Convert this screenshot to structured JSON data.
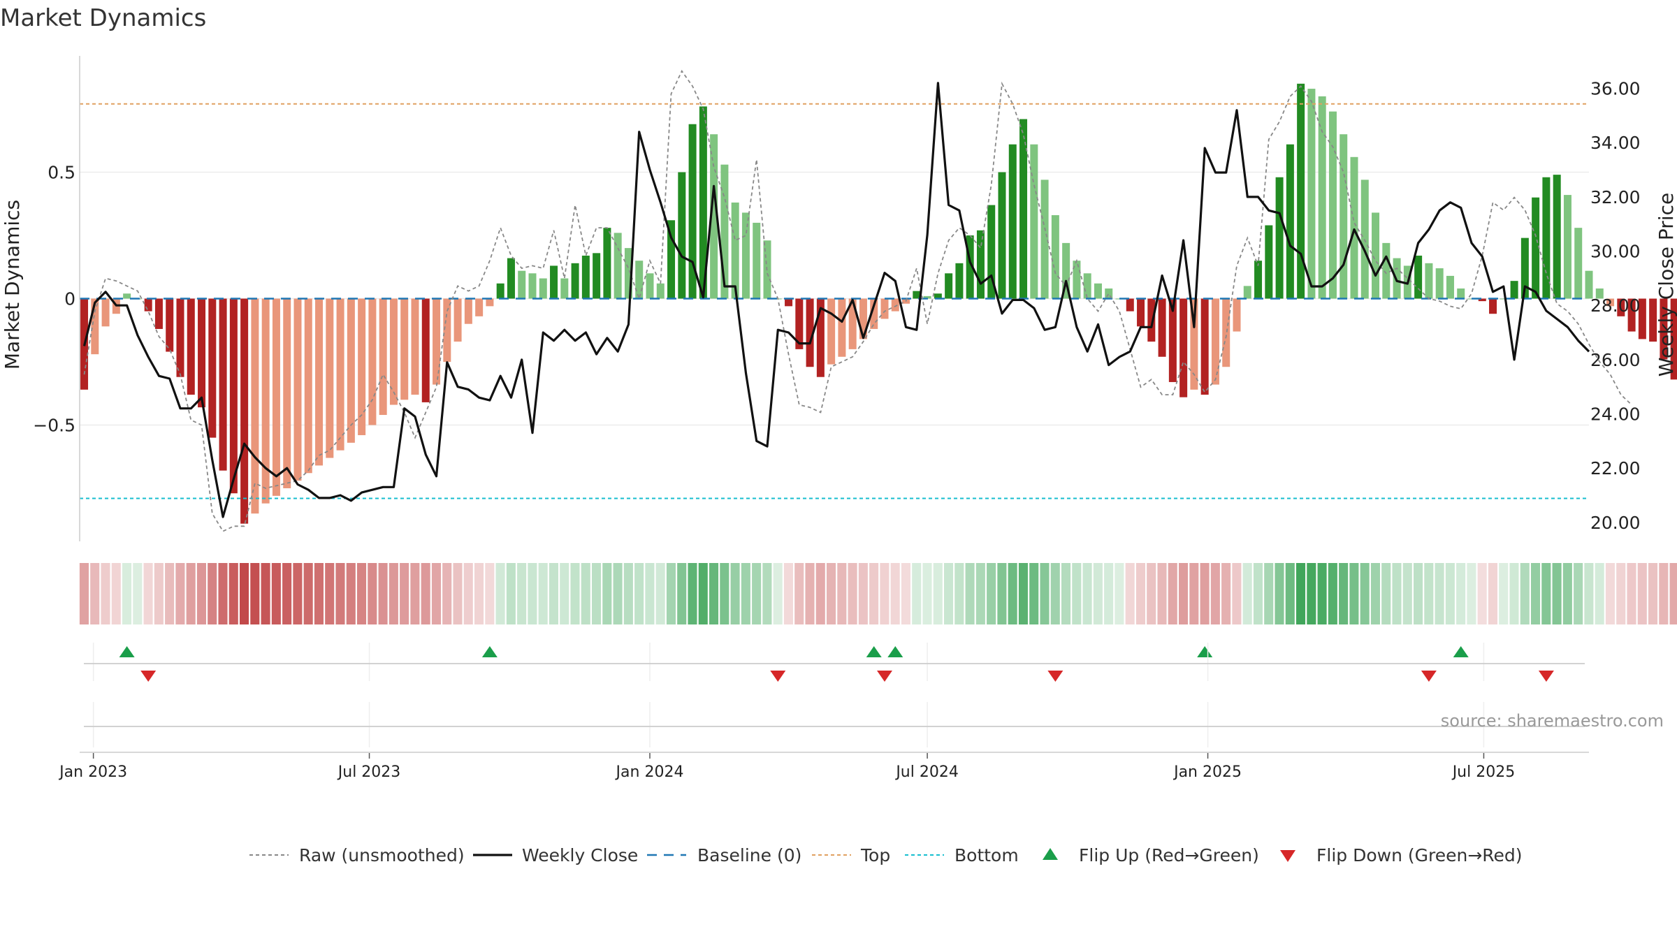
{
  "title": "Market Dynamics",
  "source": "source: sharemaestro.com",
  "colors": {
    "strong_red": "#b22222",
    "weak_red": "#e9967a",
    "strong_green": "#228b22",
    "weak_green": "#7fc47f",
    "close_line": "#111111",
    "raw_line": "#888888",
    "baseline": "#1f77b4",
    "top": "#e0a060",
    "bottom": "#17becf",
    "flip_up": "#1a9e4a",
    "flip_down": "#d62728"
  },
  "chart_data": {
    "type": "bar",
    "left_axis": {
      "label": "Market Dynamics",
      "ticks": [
        -0.5,
        0,
        0.5
      ],
      "tick_labels": [
        "−0.5",
        "0",
        "0.5"
      ],
      "range": [
        -0.96,
        0.96
      ]
    },
    "right_axis": {
      "label": "Weekly Close Price",
      "ticks": [
        20,
        22,
        24,
        26,
        28,
        30,
        32,
        34,
        36
      ],
      "tick_labels": [
        "20.00",
        "22.00",
        "24.00",
        "26.00",
        "28.00",
        "30.00",
        "32.00",
        "34.00",
        "36.00"
      ],
      "range": [
        19.3,
        37.2
      ]
    },
    "x_axis": {
      "range": [
        "2022-12-23",
        "2025-09-08"
      ],
      "ticks": [
        "2023-01-01",
        "2023-07-01",
        "2024-01-01",
        "2024-07-01",
        "2025-01-01",
        "2025-07-01"
      ],
      "tick_labels": [
        "Jan 2023",
        "Jul 2023",
        "Jan 2024",
        "Jul 2024",
        "Jan 2025",
        "Jul 2025"
      ]
    },
    "start_week": "2022-12-26",
    "top": 0.77,
    "bottom": -0.79,
    "baseline": 0,
    "dynamics": [
      -0.36,
      -0.22,
      -0.11,
      -0.06,
      0.02,
      0.0,
      -0.05,
      -0.12,
      -0.21,
      -0.31,
      -0.38,
      -0.43,
      -0.55,
      -0.68,
      -0.77,
      -0.89,
      -0.85,
      -0.81,
      -0.78,
      -0.75,
      -0.72,
      -0.69,
      -0.66,
      -0.63,
      -0.6,
      -0.57,
      -0.54,
      -0.5,
      -0.46,
      -0.42,
      -0.4,
      -0.38,
      -0.41,
      -0.34,
      -0.25,
      -0.17,
      -0.1,
      -0.07,
      -0.03,
      0.06,
      0.16,
      0.11,
      0.1,
      0.08,
      0.13,
      0.08,
      0.14,
      0.17,
      0.18,
      0.28,
      0.26,
      0.2,
      0.15,
      0.1,
      0.06,
      0.31,
      0.5,
      0.69,
      0.76,
      0.65,
      0.53,
      0.38,
      0.34,
      0.3,
      0.23,
      0.0,
      -0.03,
      -0.2,
      -0.27,
      -0.31,
      -0.26,
      -0.23,
      -0.2,
      -0.16,
      -0.12,
      -0.08,
      -0.05,
      -0.02,
      0.03,
      0.01,
      0.02,
      0.1,
      0.14,
      0.25,
      0.27,
      0.37,
      0.5,
      0.61,
      0.71,
      0.61,
      0.47,
      0.33,
      0.22,
      0.15,
      0.1,
      0.06,
      0.04,
      0.0,
      -0.05,
      -0.11,
      -0.17,
      -0.23,
      -0.33,
      -0.39,
      -0.36,
      -0.38,
      -0.34,
      -0.27,
      -0.13,
      0.05,
      0.15,
      0.29,
      0.48,
      0.61,
      0.85,
      0.83,
      0.8,
      0.74,
      0.65,
      0.56,
      0.47,
      0.34,
      0.22,
      0.16,
      0.13,
      0.17,
      0.14,
      0.12,
      0.09,
      0.04,
      0.0,
      -0.01,
      -0.06,
      0.0,
      0.07,
      0.24,
      0.4,
      0.48,
      0.49,
      0.41,
      0.28,
      0.11,
      0.04,
      -0.03,
      -0.07,
      -0.13,
      -0.16,
      -0.17,
      -0.24,
      -0.32
    ],
    "raw": [
      -0.3,
      -0.05,
      0.08,
      0.07,
      0.05,
      0.03,
      -0.05,
      -0.15,
      -0.2,
      -0.3,
      -0.48,
      -0.5,
      -0.85,
      -0.92,
      -0.9,
      -0.9,
      -0.73,
      -0.75,
      -0.74,
      -0.73,
      -0.72,
      -0.68,
      -0.62,
      -0.6,
      -0.55,
      -0.5,
      -0.46,
      -0.4,
      -0.3,
      -0.37,
      -0.45,
      -0.55,
      -0.45,
      -0.35,
      -0.05,
      0.05,
      0.03,
      0.05,
      0.15,
      0.28,
      0.17,
      0.12,
      0.13,
      0.12,
      0.27,
      0.08,
      0.37,
      0.17,
      0.28,
      0.28,
      0.2,
      0.12,
      0.0,
      0.15,
      0.06,
      0.81,
      0.9,
      0.84,
      0.75,
      0.52,
      0.4,
      0.23,
      0.25,
      0.55,
      0.1,
      0.0,
      -0.22,
      -0.42,
      -0.43,
      -0.45,
      -0.27,
      -0.25,
      -0.23,
      -0.17,
      -0.1,
      -0.05,
      -0.03,
      -0.01,
      0.12,
      -0.1,
      0.1,
      0.23,
      0.28,
      0.25,
      0.2,
      0.45,
      0.85,
      0.77,
      0.65,
      0.45,
      0.28,
      0.1,
      0.05,
      0.15,
      0.0,
      -0.05,
      0.02,
      -0.05,
      -0.2,
      -0.35,
      -0.32,
      -0.38,
      -0.38,
      -0.25,
      -0.3,
      -0.37,
      -0.32,
      -0.15,
      0.13,
      0.24,
      0.13,
      0.63,
      0.7,
      0.8,
      0.84,
      0.78,
      0.66,
      0.6,
      0.5,
      0.3,
      0.23,
      0.15,
      0.1,
      0.12,
      0.08,
      0.04,
      0.0,
      -0.01,
      -0.03,
      -0.04,
      0.02,
      0.17,
      0.38,
      0.35,
      0.4,
      0.35,
      0.25,
      0.1,
      -0.02,
      -0.05,
      -0.1,
      -0.18,
      -0.25,
      -0.3,
      -0.38,
      -0.42
    ],
    "close": [
      26.5,
      28.1,
      28.5,
      28.0,
      28.0,
      26.9,
      26.1,
      25.4,
      25.3,
      24.2,
      24.2,
      24.6,
      22.3,
      20.2,
      21.6,
      22.9,
      22.4,
      22.0,
      21.7,
      22.0,
      21.4,
      21.2,
      20.9,
      20.9,
      21.0,
      20.8,
      21.1,
      21.2,
      21.3,
      21.3,
      24.2,
      23.9,
      22.5,
      21.7,
      25.9,
      25.0,
      24.9,
      24.6,
      24.5,
      25.4,
      24.6,
      26.0,
      23.3,
      27.0,
      26.7,
      27.1,
      26.7,
      27.0,
      26.2,
      26.8,
      26.3,
      27.3,
      34.4,
      33.0,
      31.8,
      30.5,
      29.8,
      29.6,
      28.3,
      32.4,
      28.7,
      28.7,
      25.5,
      23.0,
      22.8,
      27.1,
      27.0,
      26.6,
      26.6,
      27.9,
      27.7,
      27.4,
      28.2,
      26.8,
      28.0,
      29.2,
      28.9,
      27.2,
      27.1,
      30.6,
      36.2,
      31.7,
      31.5,
      29.6,
      28.8,
      29.1,
      27.7,
      28.2,
      28.2,
      27.9,
      27.1,
      27.2,
      28.9,
      27.2,
      26.3,
      27.3,
      25.8,
      26.1,
      26.3,
      27.2,
      27.2,
      29.1,
      27.8,
      30.4,
      27.2,
      33.8,
      32.9,
      32.9,
      35.2,
      32.0,
      32.0,
      31.5,
      31.4,
      30.2,
      29.9,
      28.7,
      28.7,
      29.0,
      29.5,
      30.8,
      30.0,
      29.1,
      29.8,
      28.9,
      28.8,
      30.3,
      30.8,
      31.5,
      31.8,
      31.6,
      30.3,
      29.8,
      28.5,
      28.7,
      26.0,
      28.7,
      28.5,
      27.8,
      27.5,
      27.2,
      26.7,
      26.3
    ],
    "flip_up": [
      "2023-01-23",
      "2023-09-18",
      "2024-05-27",
      "2024-06-10",
      "2024-12-30",
      "2025-06-16"
    ],
    "flip_down": [
      "2023-02-06",
      "2024-03-25",
      "2024-06-03",
      "2024-09-23",
      "2025-05-26",
      "2025-08-11"
    ],
    "legend": [
      {
        "key": "raw",
        "label": "Raw (unsmoothed)"
      },
      {
        "key": "close",
        "label": "Weekly Close"
      },
      {
        "key": "baseline",
        "label": "Baseline (0)"
      },
      {
        "key": "top",
        "label": "Top"
      },
      {
        "key": "bottom",
        "label": "Bottom"
      },
      {
        "key": "flip_up",
        "label": "Flip Up (Red→Green)"
      },
      {
        "key": "flip_down",
        "label": "Flip Down (Green→Red)"
      }
    ]
  }
}
